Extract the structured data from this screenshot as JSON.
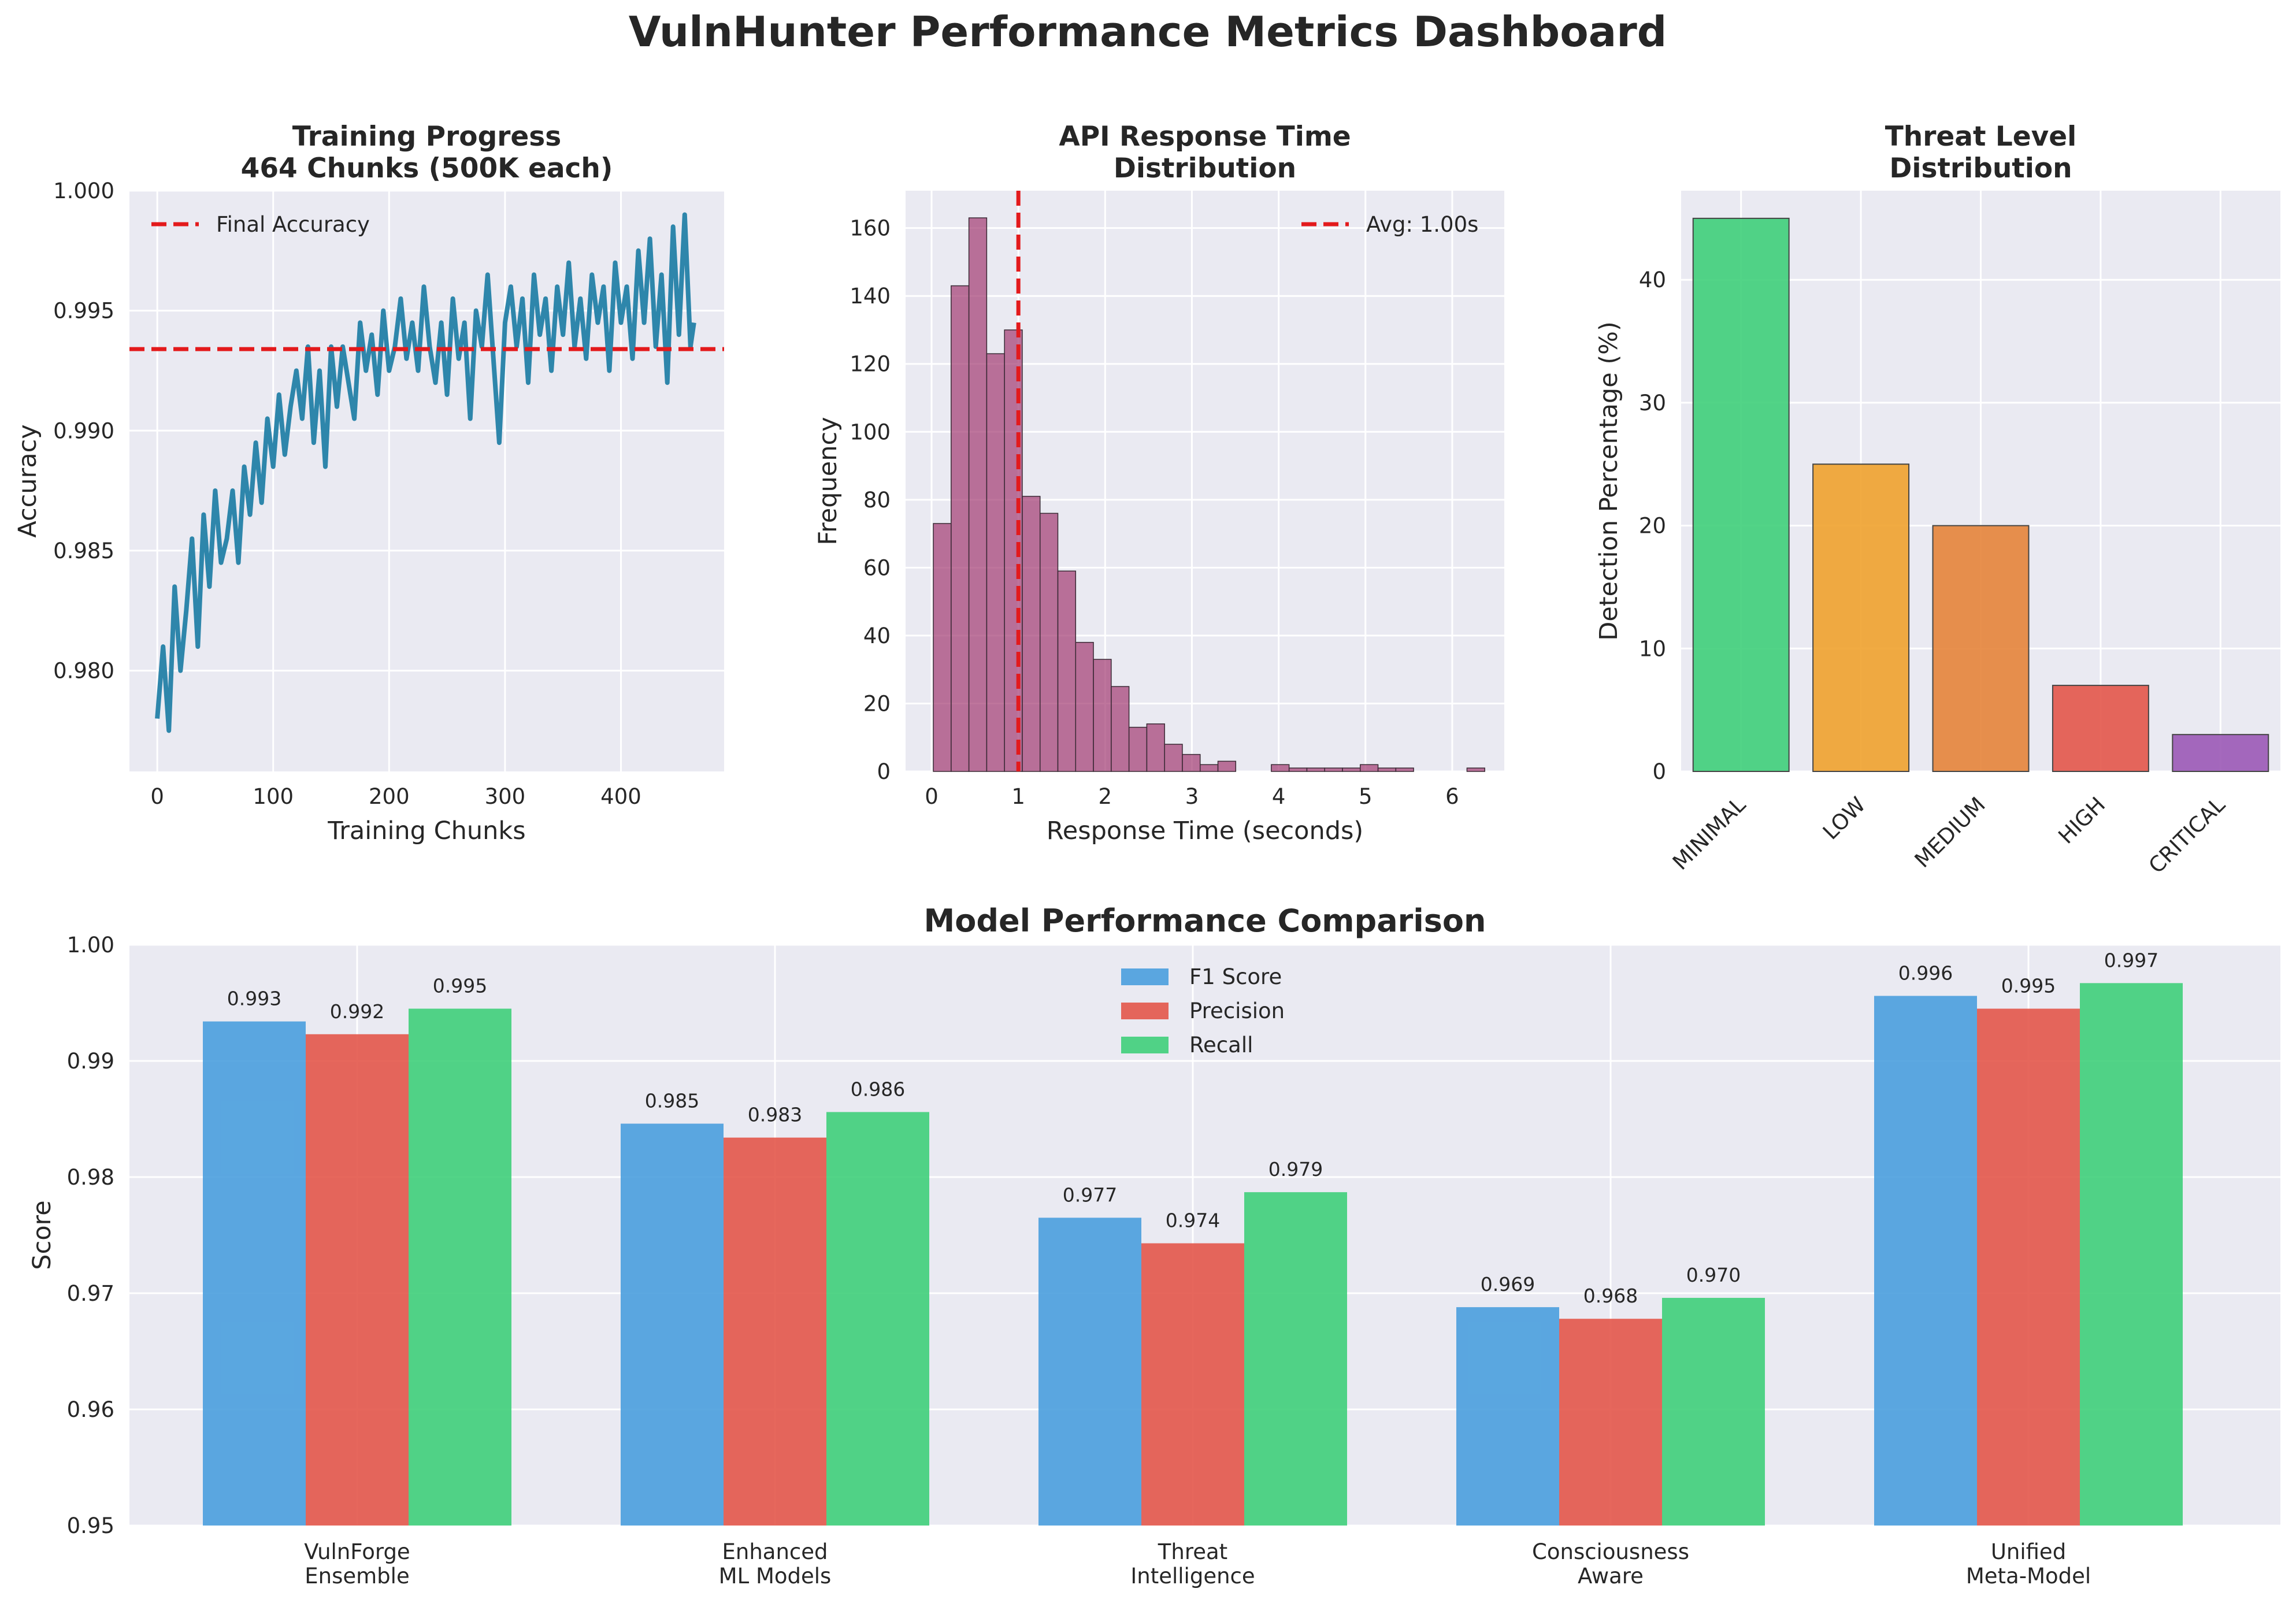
{
  "dashboard_title": "VulnHunter Performance Metrics Dashboard",
  "colors": {
    "panel_bg": "#EAEAF2",
    "grid": "#FFFFFF",
    "accuracy_line": "#2E86AB",
    "reference_line": "#E31A1C",
    "histogram": "#A23B72",
    "f1": "#4A9FDE",
    "precision": "#E3574A",
    "recall": "#3FCF7A"
  },
  "chart_data": [
    {
      "type": "line",
      "title": "Training Progress\n464 Chunks (500K each)",
      "xlabel": "Training Chunks",
      "ylabel": "Accuracy",
      "xlim": [
        -24,
        489
      ],
      "ylim": [
        0.9758,
        1.0
      ],
      "xticks": [
        0,
        100,
        200,
        300,
        400
      ],
      "yticks": [
        0.98,
        0.985,
        0.99,
        0.995,
        1.0
      ],
      "ytick_labels": [
        "0.980",
        "0.985",
        "0.990",
        "0.995",
        "1.000"
      ],
      "series": [
        {
          "name": "",
          "x": [
            0,
            5,
            10,
            15,
            20,
            25,
            30,
            35,
            40,
            45,
            50,
            55,
            60,
            65,
            70,
            75,
            80,
            85,
            90,
            95,
            100,
            105,
            110,
            115,
            120,
            125,
            130,
            135,
            140,
            145,
            150,
            155,
            160,
            165,
            170,
            175,
            180,
            185,
            190,
            195,
            200,
            205,
            210,
            215,
            220,
            225,
            230,
            235,
            240,
            245,
            250,
            255,
            260,
            265,
            270,
            275,
            280,
            285,
            290,
            295,
            300,
            305,
            310,
            315,
            320,
            325,
            330,
            335,
            340,
            345,
            350,
            355,
            360,
            365,
            370,
            375,
            380,
            385,
            390,
            395,
            400,
            405,
            410,
            415,
            420,
            425,
            430,
            435,
            440,
            445,
            450,
            455,
            460,
            463
          ],
          "y": [
            0.978,
            0.981,
            0.9775,
            0.9835,
            0.98,
            0.9825,
            0.9855,
            0.981,
            0.9865,
            0.9835,
            0.9875,
            0.9845,
            0.9855,
            0.9875,
            0.9845,
            0.9885,
            0.9865,
            0.9895,
            0.987,
            0.9905,
            0.9885,
            0.9915,
            0.989,
            0.991,
            0.9925,
            0.9905,
            0.9935,
            0.9895,
            0.9925,
            0.9885,
            0.9935,
            0.991,
            0.9935,
            0.992,
            0.9905,
            0.9945,
            0.9925,
            0.994,
            0.9915,
            0.995,
            0.9925,
            0.9935,
            0.9955,
            0.993,
            0.9945,
            0.9925,
            0.996,
            0.9935,
            0.992,
            0.9945,
            0.9915,
            0.9955,
            0.993,
            0.9945,
            0.9905,
            0.995,
            0.9935,
            0.9965,
            0.993,
            0.9895,
            0.9945,
            0.996,
            0.9935,
            0.9955,
            0.992,
            0.9965,
            0.994,
            0.9955,
            0.9925,
            0.996,
            0.994,
            0.997,
            0.9935,
            0.9955,
            0.993,
            0.9965,
            0.9945,
            0.996,
            0.9925,
            0.997,
            0.9945,
            0.996,
            0.993,
            0.9975,
            0.9945,
            0.998,
            0.9935,
            0.9965,
            0.992,
            0.9985,
            0.994,
            0.999,
            0.9935,
            0.9945
          ]
        }
      ],
      "reference_line": {
        "label": "Final Accuracy",
        "value": 0.9934
      },
      "grid": true,
      "legend": "upper-left"
    },
    {
      "type": "histogram",
      "title": "API Response Time\nDistribution",
      "xlabel": "Response Time (seconds)",
      "ylabel": "Frequency",
      "xlim": [
        -0.3,
        6.6
      ],
      "ylim": [
        0,
        171
      ],
      "xticks": [
        0,
        1,
        2,
        3,
        4,
        5,
        6
      ],
      "yticks": [
        0,
        20,
        40,
        60,
        80,
        100,
        120,
        140,
        160
      ],
      "bin_start": 0.02,
      "bin_width": 0.205,
      "counts": [
        73,
        143,
        163,
        123,
        130,
        81,
        76,
        59,
        38,
        33,
        25,
        13,
        14,
        8,
        5,
        2,
        3,
        0,
        0,
        2,
        1,
        1,
        1,
        1,
        2,
        1,
        1,
        0,
        0,
        0,
        1
      ],
      "reference_line": {
        "label": "Avg: 1.00s",
        "value": 1.0
      },
      "grid": true,
      "legend": "upper-right"
    },
    {
      "type": "bar",
      "title": "Threat Level\nDistribution",
      "xlabel": "",
      "ylabel": "Detection Percentage (%)",
      "categories": [
        "MINIMAL",
        "LOW",
        "MEDIUM",
        "HIGH",
        "CRITICAL"
      ],
      "values": [
        45,
        25,
        20,
        7,
        3
      ],
      "bar_colors": [
        "#3FCF7A",
        "#F0A22E",
        "#E5843A",
        "#E3574A",
        "#9B59B6"
      ],
      "ylim": [
        0,
        47.25
      ],
      "yticks": [
        0,
        10,
        20,
        30,
        40
      ],
      "grid": true
    },
    {
      "type": "bar",
      "title": "Model Performance Comparison",
      "xlabel": "",
      "ylabel": "Score",
      "categories": [
        "VulnForge\nEnsemble",
        "Enhanced\nML Models",
        "Threat\nIntelligence",
        "Consciousness\nAware",
        "Unified\nMeta-Model"
      ],
      "series": [
        {
          "name": "F1 Score",
          "values": [
            0.9934,
            0.9846,
            0.9765,
            0.9688,
            0.9956
          ],
          "labels": [
            "0.993",
            "0.985",
            "0.977",
            "0.969",
            "0.996"
          ]
        },
        {
          "name": "Precision",
          "values": [
            0.9923,
            0.9834,
            0.9743,
            0.9678,
            0.9945
          ],
          "labels": [
            "0.992",
            "0.983",
            "0.974",
            "0.968",
            "0.995"
          ]
        },
        {
          "name": "Recall",
          "values": [
            0.9945,
            0.9856,
            0.9787,
            0.9696,
            0.9967
          ],
          "labels": [
            "0.995",
            "0.986",
            "0.979",
            "0.970",
            "0.997"
          ]
        }
      ],
      "ylim": [
        0.95,
        1.0
      ],
      "yticks": [
        0.95,
        0.96,
        0.97,
        0.98,
        0.99,
        1.0
      ],
      "ytick_labels": [
        "0.95",
        "0.96",
        "0.97",
        "0.98",
        "0.99",
        "1.00"
      ],
      "grid": true,
      "legend": "upper-center"
    }
  ]
}
